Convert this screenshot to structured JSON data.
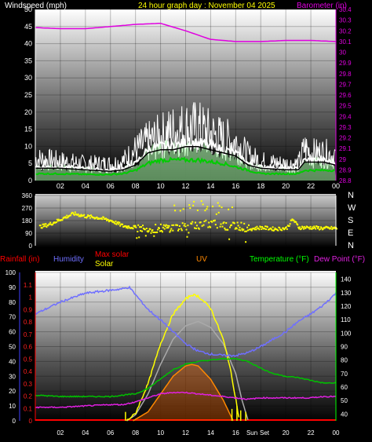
{
  "header": {
    "left_label": "Windspeed (mph)",
    "title": "24 hour graph day : November 04 2025",
    "right_label": "Barometer (in)"
  },
  "legend3": {
    "rainfall": "Rainfall (in)",
    "humidity": "Humidity",
    "max_solar": "Max solar",
    "solar": "Solar",
    "uv": "UV",
    "temperature": "Temperature (°F)",
    "dew_point": "Dew Point (°F)"
  },
  "compass": [
    "N",
    "W",
    "S",
    "E",
    "N"
  ],
  "sun_labels": {
    "sunrise": "Sun",
    "sunset": "Set"
  },
  "colors": {
    "barometer": "#e000e0",
    "wind": "#ffffff",
    "wind_avg": "#00cc00",
    "wind_gust_fill": "#aaffaa",
    "direction": "#ffff00",
    "humidity": "#6f6fff",
    "temperature": "#00c000",
    "dew_point": "#e020e0",
    "rain": "#ff0000",
    "solar": "#ffff00",
    "max_solar": "#aaaaaa",
    "uv": "#ff8800",
    "left_axis": "#ffff00",
    "right_axis3": "#00ff00"
  },
  "chart_data": [
    {
      "type": "line",
      "name": "wind_barometer",
      "x_ticks": [
        "02",
        "04",
        "06",
        "08",
        "10",
        "12",
        "14",
        "16",
        "18",
        "20",
        "22",
        "00"
      ],
      "y_left_ticks": [
        "0",
        "5",
        "10",
        "15",
        "20",
        "25",
        "30",
        "35",
        "40",
        "45",
        "50"
      ],
      "y_left_range": [
        0,
        50
      ],
      "y_right_ticks": [
        "28.8",
        "28.9",
        "29",
        "29.1",
        "29.2",
        "29.3",
        "29.4",
        "29.5",
        "29.6",
        "29.7",
        "29.8",
        "29.9",
        "30",
        "30.1",
        "30.2",
        "30.3",
        "30.4"
      ],
      "y_right_range": [
        28.8,
        30.4
      ],
      "series": [
        {
          "key": "barometer",
          "hours": [
            0,
            2,
            4,
            6,
            8,
            10,
            12,
            14,
            16,
            18,
            20,
            22,
            24
          ],
          "values": [
            30.23,
            30.22,
            30.22,
            30.24,
            30.26,
            30.27,
            30.2,
            30.12,
            30.1,
            30.1,
            30.11,
            30.11,
            30.1
          ]
        },
        {
          "key": "wind_speed",
          "hours": [
            0,
            2,
            4,
            6,
            7,
            8,
            9,
            10,
            11,
            12,
            13,
            14,
            15,
            16,
            17,
            18,
            20,
            21,
            21.5,
            22,
            23,
            24
          ],
          "values": [
            4,
            4,
            3.5,
            3,
            3.5,
            5,
            9,
            10,
            10,
            11,
            11,
            10,
            9,
            8,
            5,
            4,
            3.5,
            3.5,
            6,
            6,
            6,
            5
          ]
        },
        {
          "key": "wind_gust",
          "hours": [
            0,
            2,
            4,
            6,
            7,
            8,
            9,
            10,
            11,
            12,
            13,
            14,
            15,
            16,
            17,
            18,
            20,
            21,
            21.5,
            22,
            23,
            24
          ],
          "values": [
            8,
            7,
            6,
            6,
            7,
            11,
            14,
            16,
            18,
            19,
            19,
            17,
            15,
            14,
            9,
            7,
            6,
            6,
            12,
            10,
            10,
            9
          ]
        },
        {
          "key": "wind_avg",
          "hours": [
            0,
            2,
            4,
            6,
            7,
            8,
            9,
            10,
            11,
            12,
            13,
            14,
            15,
            16,
            17,
            18,
            20,
            21,
            21.5,
            22,
            23,
            24
          ],
          "values": [
            2,
            2,
            1.8,
            1.8,
            2,
            3,
            5,
            6,
            6,
            6,
            6,
            5.5,
            5,
            4,
            3,
            2,
            2,
            2,
            3,
            3,
            3,
            3
          ]
        }
      ]
    },
    {
      "type": "scatter",
      "name": "wind_direction",
      "y_ticks": [
        "360",
        "270",
        "180",
        "90",
        "0"
      ],
      "y_range": [
        0,
        360
      ],
      "x_ticks": [
        "02",
        "04",
        "06",
        "08",
        "10",
        "12",
        "14",
        "16",
        "18",
        "20",
        "22",
        "00"
      ],
      "series": [
        {
          "key": "direction",
          "hours": [
            0,
            1,
            2,
            3,
            4,
            5,
            6,
            7,
            8,
            9,
            10,
            11,
            12,
            13,
            14,
            15,
            16,
            17,
            18,
            19,
            20,
            20.5,
            21,
            22,
            23,
            24
          ],
          "values": [
            130,
            150,
            190,
            230,
            210,
            200,
            180,
            140,
            130,
            120,
            125,
            130,
            140,
            150,
            160,
            140,
            150,
            120,
            130,
            120,
            125,
            190,
            130,
            130,
            125,
            125
          ]
        }
      ]
    },
    {
      "type": "line",
      "name": "temp_humidity_solar",
      "x_ticks": [
        "02",
        "04",
        "06",
        "08",
        "10",
        "12",
        "14",
        "16",
        "Sun",
        "Set",
        "20",
        "22",
        "00"
      ],
      "humidity_ticks": [
        "0",
        "10",
        "20",
        "30",
        "40",
        "50",
        "60",
        "70",
        "80",
        "90",
        "100"
      ],
      "humidity_range": [
        0,
        100
      ],
      "rain_ticks": [
        "0",
        "0.1",
        "0.2",
        "0.3",
        "0.4",
        "0.5",
        "0.6",
        "0.7",
        "0.8",
        "0.9",
        "1",
        "1.1"
      ],
      "rain_range": [
        0,
        1.1
      ],
      "temp_ticks": [
        "40",
        "50",
        "60",
        "70",
        "80",
        "90",
        "100",
        "110",
        "120",
        "130",
        "140"
      ],
      "temp_range": [
        35,
        145
      ],
      "series": [
        {
          "key": "humidity",
          "hours": [
            0,
            1,
            2,
            3,
            4,
            5,
            6,
            7,
            7.5,
            8,
            9,
            10,
            11,
            12,
            13,
            14,
            15,
            16,
            17,
            18,
            19,
            20,
            21,
            22,
            23,
            24
          ],
          "values": [
            72,
            76,
            80,
            83,
            86,
            87,
            88,
            89,
            90,
            85,
            75,
            68,
            60,
            52,
            47,
            45,
            44,
            44,
            46,
            50,
            55,
            60,
            67,
            72,
            78,
            86
          ]
        },
        {
          "key": "temperature",
          "hours": [
            0,
            2,
            4,
            6,
            7,
            8,
            9,
            10,
            11,
            12,
            13,
            14,
            15,
            16,
            17,
            18,
            19,
            20,
            21,
            22,
            23,
            24
          ],
          "values": [
            54,
            53,
            53,
            53,
            54,
            55,
            59,
            66,
            73,
            77,
            79,
            80,
            81,
            81,
            79,
            74,
            70,
            68,
            67,
            65,
            63,
            63
          ]
        },
        {
          "key": "dew_point",
          "hours": [
            0,
            2,
            4,
            6,
            7,
            8,
            9,
            10,
            11,
            12,
            13,
            14,
            15,
            16,
            17,
            18,
            19,
            20,
            21,
            22,
            23,
            24
          ],
          "values": [
            45,
            45,
            46,
            47,
            47,
            49,
            52,
            55,
            56,
            56,
            55,
            54,
            53,
            52,
            51,
            52,
            52,
            52,
            52,
            52,
            53,
            53
          ]
        },
        {
          "key": "solar",
          "hours": [
            7.3,
            8,
            9,
            10,
            11,
            12,
            12.5,
            13,
            14,
            15,
            15.5,
            16,
            16.3
          ],
          "values": [
            0,
            5,
            25,
            52,
            72,
            82,
            85,
            84,
            76,
            55,
            38,
            15,
            0
          ]
        },
        {
          "key": "max_solar",
          "hours": [
            7.3,
            8,
            9,
            10,
            11,
            12,
            13,
            14,
            15,
            16,
            16.5,
            17
          ],
          "values": [
            0,
            4,
            18,
            38,
            55,
            64,
            67,
            63,
            52,
            32,
            14,
            0
          ]
        },
        {
          "key": "uv",
          "hours": [
            7.8,
            9,
            10,
            11,
            12,
            12.5,
            13,
            14,
            15,
            15.8
          ],
          "values": [
            0,
            6,
            18,
            30,
            37,
            38,
            37,
            28,
            14,
            0
          ]
        }
      ]
    }
  ]
}
